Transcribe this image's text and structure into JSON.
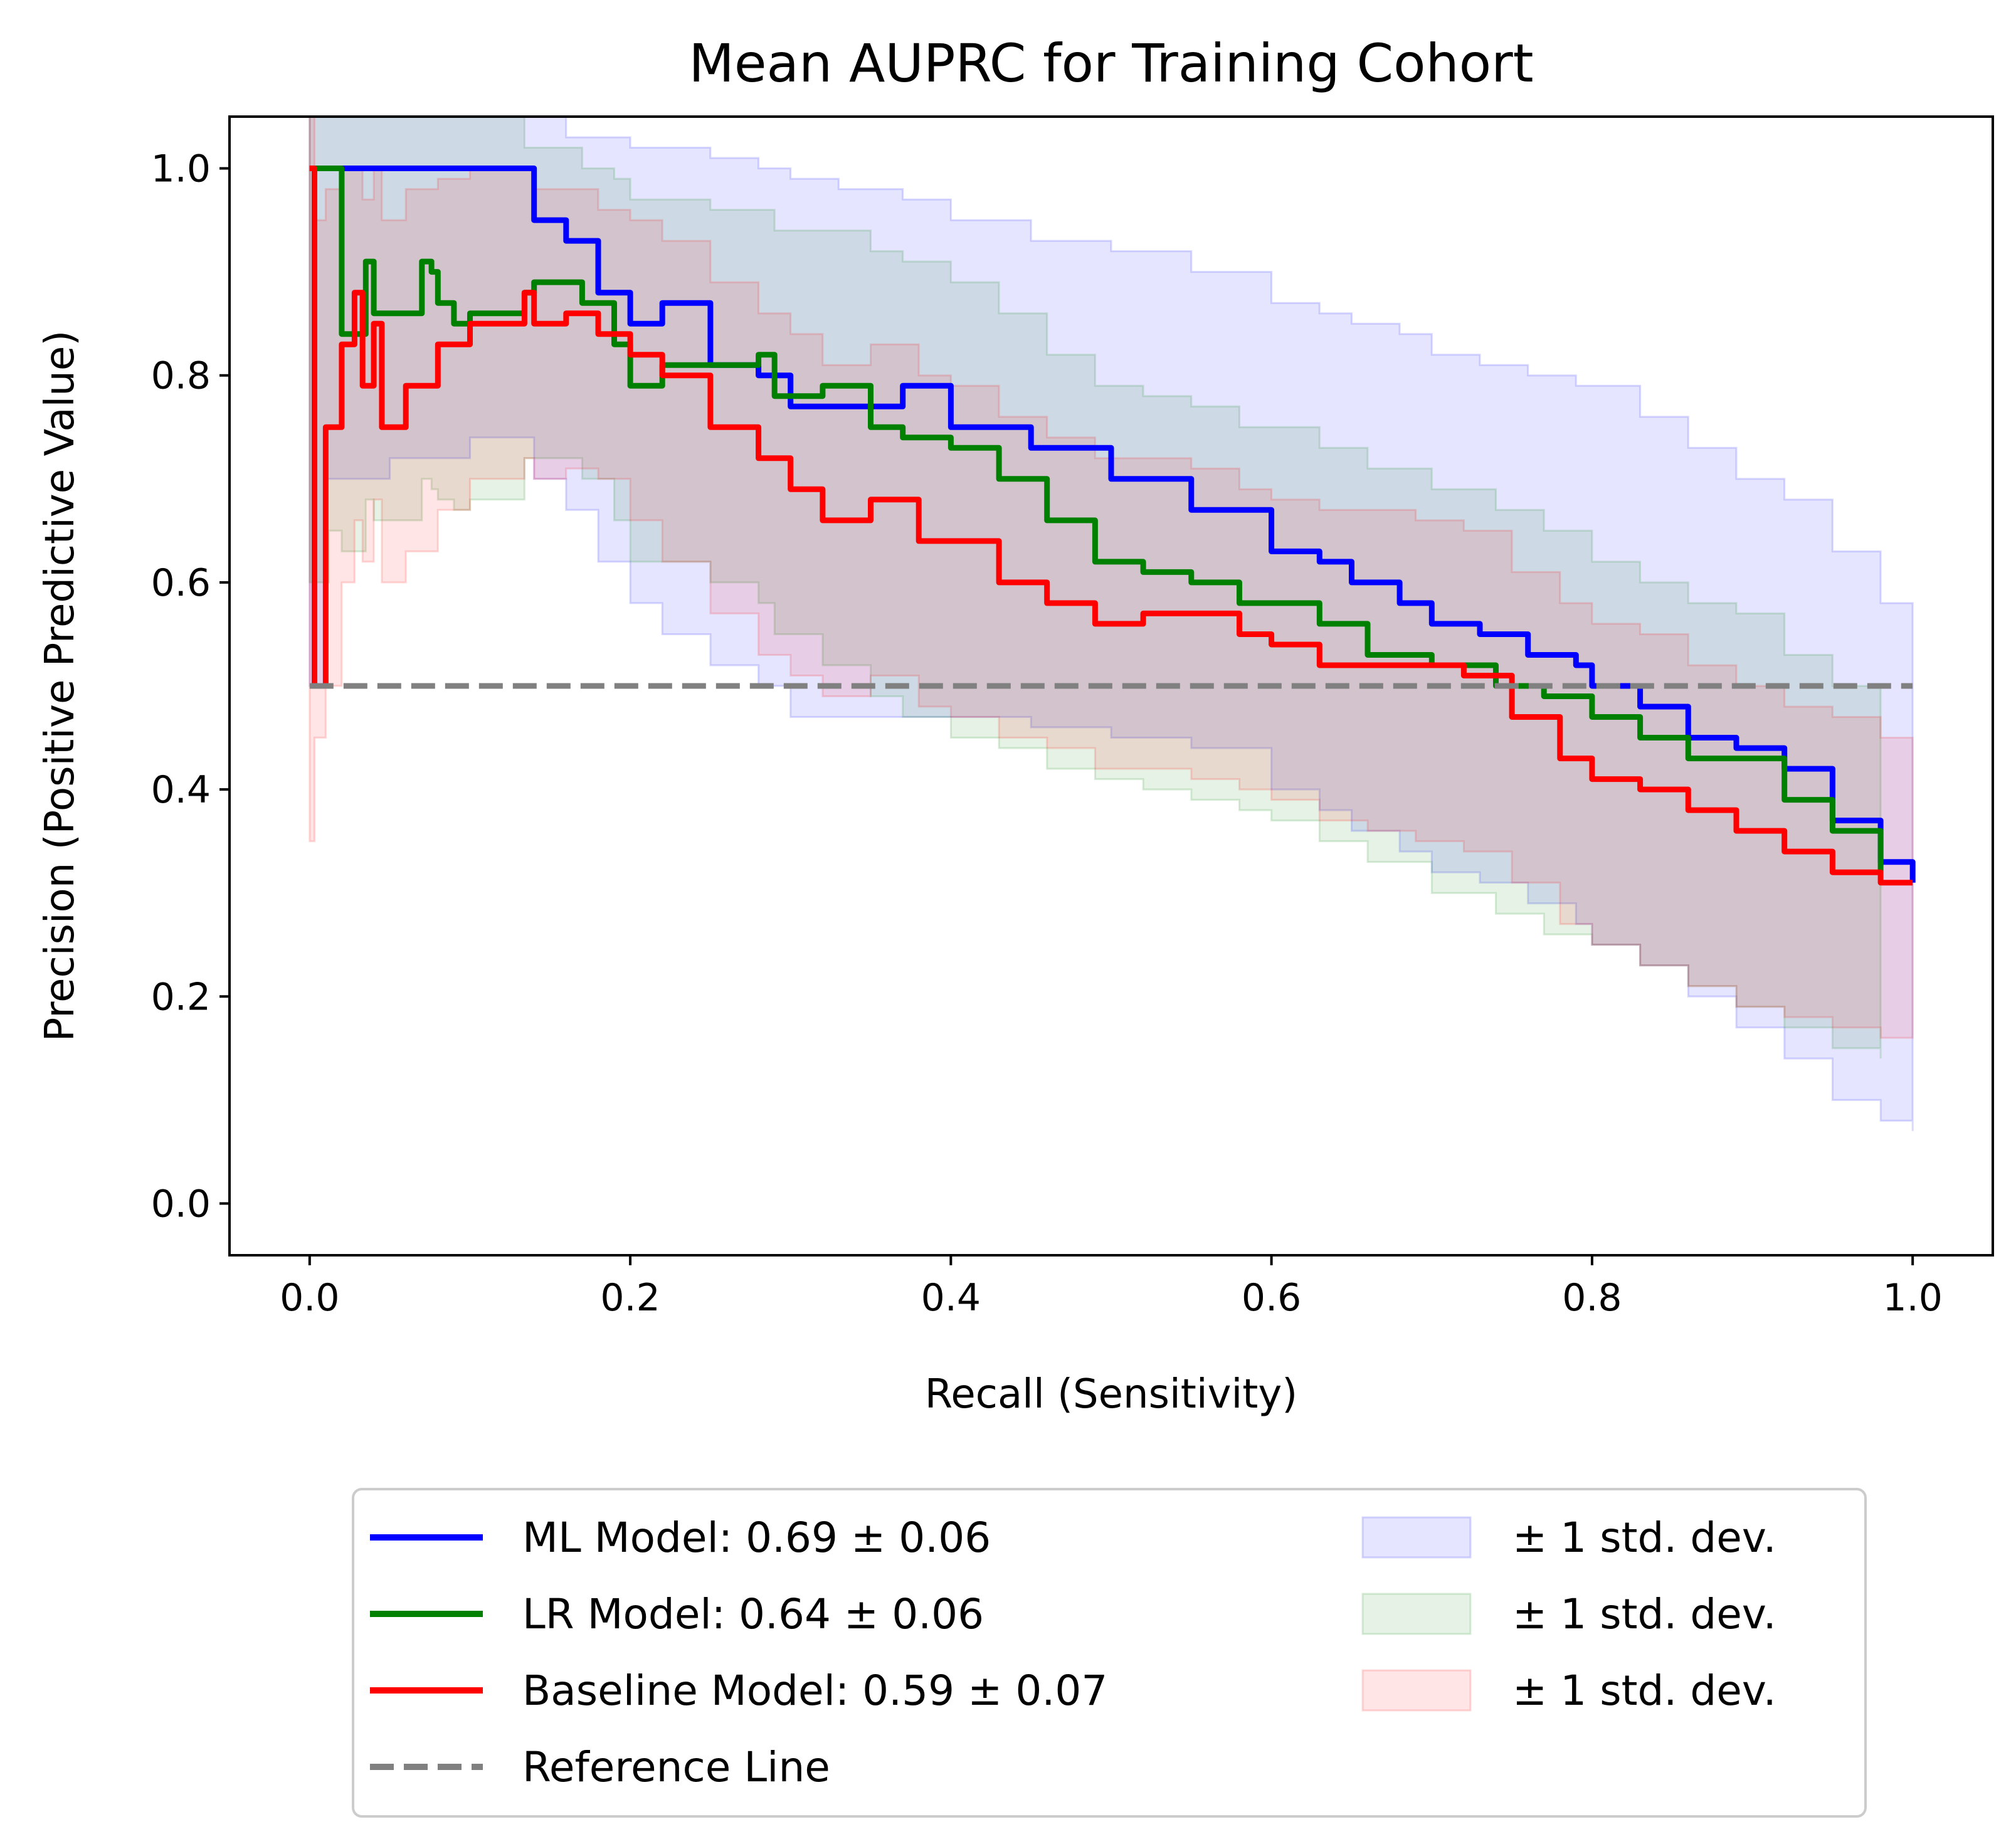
{
  "chart_data": {
    "type": "line",
    "title": "Mean AUPRC for Training Cohort",
    "xlabel": "Recall (Sensitivity)",
    "ylabel": "Precision (Positive Predictive Value)",
    "xlim": [
      -0.05,
      1.05
    ],
    "ylim": [
      -0.05,
      1.05
    ],
    "xticks": [
      0.0,
      0.2,
      0.4,
      0.6,
      0.8,
      1.0
    ],
    "yticks": [
      0.0,
      0.2,
      0.4,
      0.6,
      0.8,
      1.0
    ],
    "xtick_labels": [
      "0.0",
      "0.2",
      "0.4",
      "0.6",
      "0.8",
      "1.0"
    ],
    "ytick_labels": [
      "0.0",
      "0.2",
      "0.4",
      "0.6",
      "0.8",
      "1.0"
    ],
    "grid": false,
    "legend_placement": "below",
    "series": [
      {
        "name": "ML Model: 0.69 ± 0.06",
        "color": "#0000ff",
        "x": [
          0.0,
          0.01,
          0.05,
          0.1,
          0.134,
          0.14,
          0.16,
          0.18,
          0.2,
          0.22,
          0.25,
          0.28,
          0.3,
          0.33,
          0.37,
          0.4,
          0.45,
          0.5,
          0.55,
          0.6,
          0.63,
          0.65,
          0.68,
          0.7,
          0.73,
          0.76,
          0.79,
          0.8,
          0.83,
          0.86,
          0.89,
          0.92,
          0.95,
          0.98,
          1.0
        ],
        "y": [
          1.0,
          1.0,
          1.0,
          1.0,
          1.0,
          0.95,
          0.93,
          0.88,
          0.85,
          0.87,
          0.81,
          0.8,
          0.77,
          0.77,
          0.79,
          0.75,
          0.73,
          0.7,
          0.67,
          0.63,
          0.62,
          0.6,
          0.58,
          0.56,
          0.55,
          0.53,
          0.52,
          0.5,
          0.48,
          0.45,
          0.44,
          0.42,
          0.37,
          0.33,
          0.31
        ],
        "band_upper": [
          1.05,
          1.05,
          1.05,
          1.05,
          1.05,
          1.05,
          1.03,
          1.03,
          1.02,
          1.02,
          1.01,
          1.0,
          0.99,
          0.98,
          0.97,
          0.95,
          0.93,
          0.92,
          0.9,
          0.87,
          0.86,
          0.85,
          0.84,
          0.82,
          0.81,
          0.8,
          0.79,
          0.79,
          0.76,
          0.73,
          0.7,
          0.68,
          0.63,
          0.58,
          0.55
        ],
        "band_lower": [
          0.5,
          0.7,
          0.72,
          0.74,
          0.74,
          0.7,
          0.67,
          0.62,
          0.58,
          0.55,
          0.52,
          0.5,
          0.47,
          0.47,
          0.47,
          0.47,
          0.46,
          0.45,
          0.44,
          0.4,
          0.38,
          0.36,
          0.34,
          0.32,
          0.31,
          0.29,
          0.27,
          0.25,
          0.23,
          0.2,
          0.17,
          0.14,
          0.1,
          0.08,
          0.07
        ]
      },
      {
        "name": "LR Model: 0.64 ± 0.06",
        "color": "#008000",
        "x": [
          0.0,
          0.012,
          0.02,
          0.035,
          0.04,
          0.07,
          0.076,
          0.08,
          0.09,
          0.1,
          0.134,
          0.14,
          0.15,
          0.17,
          0.19,
          0.2,
          0.22,
          0.25,
          0.28,
          0.29,
          0.32,
          0.35,
          0.37,
          0.4,
          0.43,
          0.46,
          0.49,
          0.52,
          0.55,
          0.58,
          0.6,
          0.63,
          0.66,
          0.7,
          0.74,
          0.77,
          0.8,
          0.83,
          0.86,
          0.89,
          0.92,
          0.95,
          0.98
        ],
        "y": [
          1.0,
          1.0,
          0.84,
          0.91,
          0.86,
          0.91,
          0.9,
          0.87,
          0.85,
          0.86,
          0.88,
          0.89,
          0.89,
          0.87,
          0.83,
          0.79,
          0.81,
          0.81,
          0.82,
          0.78,
          0.79,
          0.75,
          0.74,
          0.73,
          0.7,
          0.66,
          0.62,
          0.61,
          0.6,
          0.58,
          0.58,
          0.56,
          0.53,
          0.52,
          0.5,
          0.49,
          0.47,
          0.45,
          0.43,
          0.43,
          0.39,
          0.36,
          0.32
        ],
        "band_upper": [
          1.05,
          1.05,
          1.05,
          1.05,
          1.05,
          1.05,
          1.05,
          1.05,
          1.05,
          1.05,
          1.02,
          1.02,
          1.02,
          1.0,
          0.99,
          0.97,
          0.97,
          0.96,
          0.96,
          0.94,
          0.94,
          0.92,
          0.91,
          0.89,
          0.86,
          0.82,
          0.79,
          0.78,
          0.77,
          0.75,
          0.75,
          0.73,
          0.71,
          0.69,
          0.67,
          0.65,
          0.62,
          0.6,
          0.58,
          0.57,
          0.53,
          0.5,
          0.48
        ],
        "band_lower": [
          0.6,
          0.65,
          0.63,
          0.68,
          0.66,
          0.7,
          0.69,
          0.68,
          0.67,
          0.68,
          0.72,
          0.72,
          0.72,
          0.7,
          0.66,
          0.62,
          0.62,
          0.6,
          0.58,
          0.55,
          0.52,
          0.49,
          0.47,
          0.45,
          0.44,
          0.42,
          0.41,
          0.4,
          0.39,
          0.38,
          0.37,
          0.35,
          0.33,
          0.3,
          0.28,
          0.26,
          0.25,
          0.23,
          0.21,
          0.19,
          0.17,
          0.15,
          0.14
        ]
      },
      {
        "name": "Baseline Model: 0.59 ± 0.07",
        "color": "#ff0000",
        "x": [
          0.0,
          0.003,
          0.01,
          0.02,
          0.028,
          0.033,
          0.04,
          0.045,
          0.06,
          0.08,
          0.1,
          0.134,
          0.14,
          0.16,
          0.18,
          0.2,
          0.22,
          0.25,
          0.28,
          0.3,
          0.32,
          0.35,
          0.38,
          0.4,
          0.43,
          0.46,
          0.49,
          0.52,
          0.55,
          0.58,
          0.6,
          0.63,
          0.66,
          0.69,
          0.72,
          0.75,
          0.78,
          0.8,
          0.83,
          0.86,
          0.89,
          0.92,
          0.95,
          0.98,
          1.0
        ],
        "y": [
          1.0,
          0.5,
          0.75,
          0.83,
          0.88,
          0.79,
          0.85,
          0.75,
          0.79,
          0.83,
          0.85,
          0.88,
          0.85,
          0.86,
          0.84,
          0.82,
          0.8,
          0.75,
          0.72,
          0.69,
          0.66,
          0.68,
          0.64,
          0.64,
          0.6,
          0.58,
          0.56,
          0.57,
          0.57,
          0.55,
          0.54,
          0.52,
          0.52,
          0.52,
          0.51,
          0.47,
          0.43,
          0.41,
          0.4,
          0.38,
          0.36,
          0.34,
          0.32,
          0.31,
          0.31
        ],
        "band_upper": [
          1.05,
          0.95,
          0.98,
          1.0,
          1.0,
          0.97,
          1.0,
          0.95,
          0.98,
          0.99,
          1.0,
          1.0,
          0.98,
          0.98,
          0.96,
          0.95,
          0.93,
          0.89,
          0.86,
          0.84,
          0.81,
          0.83,
          0.8,
          0.79,
          0.76,
          0.74,
          0.72,
          0.72,
          0.71,
          0.69,
          0.68,
          0.67,
          0.67,
          0.66,
          0.65,
          0.61,
          0.58,
          0.56,
          0.55,
          0.52,
          0.5,
          0.48,
          0.47,
          0.45,
          0.45
        ],
        "band_lower": [
          0.35,
          0.45,
          0.5,
          0.6,
          0.66,
          0.62,
          0.68,
          0.6,
          0.63,
          0.67,
          0.7,
          0.72,
          0.7,
          0.71,
          0.7,
          0.66,
          0.62,
          0.57,
          0.53,
          0.51,
          0.49,
          0.51,
          0.48,
          0.47,
          0.45,
          0.44,
          0.42,
          0.42,
          0.41,
          0.4,
          0.39,
          0.37,
          0.36,
          0.35,
          0.34,
          0.31,
          0.27,
          0.25,
          0.23,
          0.21,
          0.19,
          0.18,
          0.17,
          0.16,
          0.16
        ]
      }
    ],
    "reference_line": {
      "name": "Reference Line",
      "color": "#808080",
      "x": [
        0.0,
        1.0
      ],
      "y": [
        0.5,
        0.5
      ]
    },
    "legend": {
      "lines": [
        "ML Model: 0.69 ± 0.06",
        "LR Model: 0.64 ± 0.06",
        "Baseline Model: 0.59 ± 0.07",
        "Reference Line"
      ],
      "bands": [
        "± 1 std. dev.",
        "± 1 std. dev.",
        "± 1 std. dev."
      ]
    }
  }
}
